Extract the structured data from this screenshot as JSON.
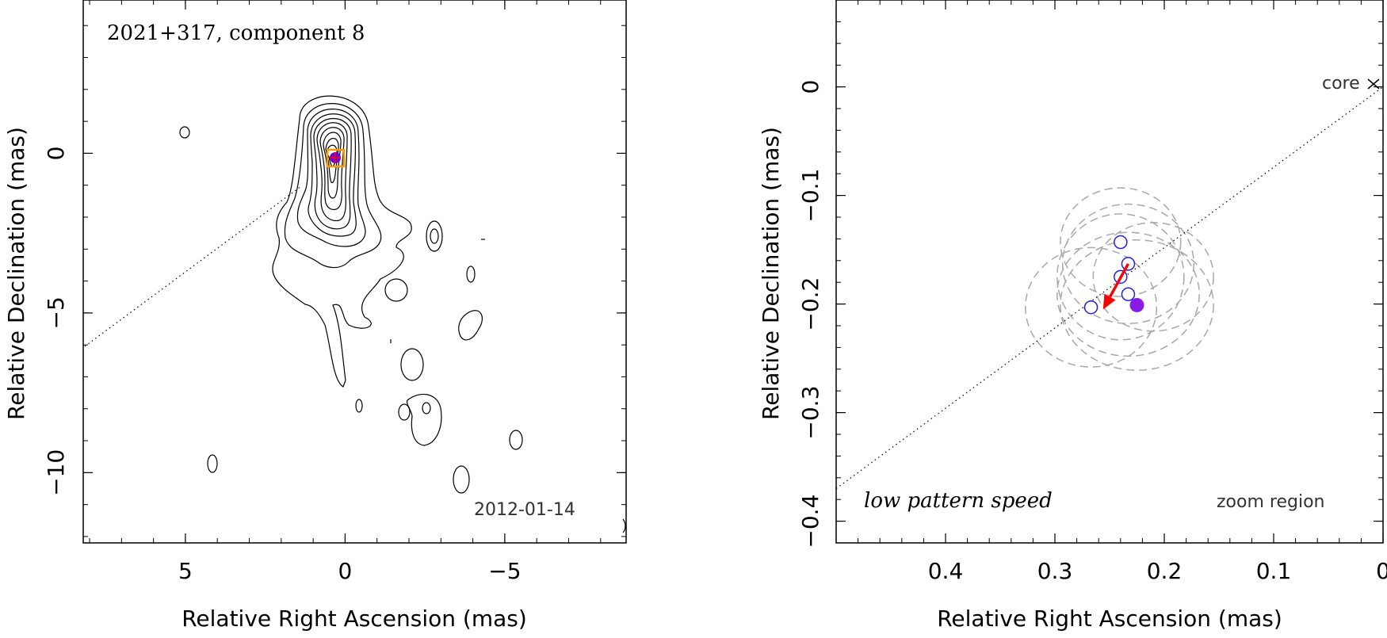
{
  "chart_data": [
    {
      "type": "contour",
      "title": "2021+317, component 8",
      "date": "2012-01-14",
      "xlabel": "Relative Right Ascension (mas)",
      "ylabel": "Relative Declination (mas)",
      "xlim": [
        8.2,
        -8.8
      ],
      "ylim": [
        -12.2,
        4.8
      ],
      "xticks": [
        5,
        0,
        -5
      ],
      "yticks": [
        0,
        -5,
        -10
      ],
      "component_marker": {
        "x": 0.2,
        "y": -0.2,
        "box_color": "#ff9900",
        "fill_color": "#6a00d6"
      },
      "jet_axis_line": {
        "from": [
          8.2,
          -6.0
        ],
        "to": [
          1.5,
          -1.0
        ],
        "style": "dotted"
      }
    },
    {
      "type": "scatter",
      "xlabel": "Relative Right Ascension (mas)",
      "ylabel": "Relative Declination (mas)",
      "xlim": [
        0.5,
        0.0
      ],
      "ylim": [
        -0.42,
        0.08
      ],
      "xticks": [
        0.4,
        0.3,
        0.2,
        0.1,
        0
      ],
      "yticks": [
        0,
        -0.1,
        -0.2,
        -0.3,
        -0.4
      ],
      "core_label": "core",
      "bottom_left_label": "low pattern speed",
      "bottom_right_label": "zoom region",
      "open_points": [
        {
          "x": 0.24,
          "y": -0.143
        },
        {
          "x": 0.233,
          "y": -0.163
        },
        {
          "x": 0.24,
          "y": -0.175
        },
        {
          "x": 0.233,
          "y": -0.191
        },
        {
          "x": 0.267,
          "y": -0.203
        }
      ],
      "filled_point": {
        "x": 0.225,
        "y": -0.201
      },
      "arrow": {
        "from": [
          0.233,
          -0.163
        ],
        "to": [
          0.256,
          -0.205
        ],
        "color": "#ff0000"
      },
      "dashed_ellipses": [
        {
          "x": 0.24,
          "y": -0.143,
          "rx": 0.055,
          "ry": 0.05
        },
        {
          "x": 0.233,
          "y": -0.163,
          "rx": 0.06,
          "ry": 0.055
        },
        {
          "x": 0.24,
          "y": -0.175,
          "rx": 0.058,
          "ry": 0.058
        },
        {
          "x": 0.233,
          "y": -0.191,
          "rx": 0.065,
          "ry": 0.057
        },
        {
          "x": 0.267,
          "y": -0.203,
          "rx": 0.06,
          "ry": 0.055
        },
        {
          "x": 0.225,
          "y": -0.201,
          "rx": 0.07,
          "ry": 0.06
        },
        {
          "x": 0.21,
          "y": -0.175,
          "rx": 0.055,
          "ry": 0.05
        }
      ],
      "diagonal_line": {
        "from": [
          0.5,
          -0.37
        ],
        "to": [
          0.0,
          0.0
        ],
        "style": "dotted"
      }
    }
  ],
  "colors": {
    "open_point": "#2020e0",
    "filled_point": "#8a1ae6",
    "arrow": "#ff0000",
    "ellipse": "#a8a8a8",
    "marker_box": "#ff9900"
  }
}
